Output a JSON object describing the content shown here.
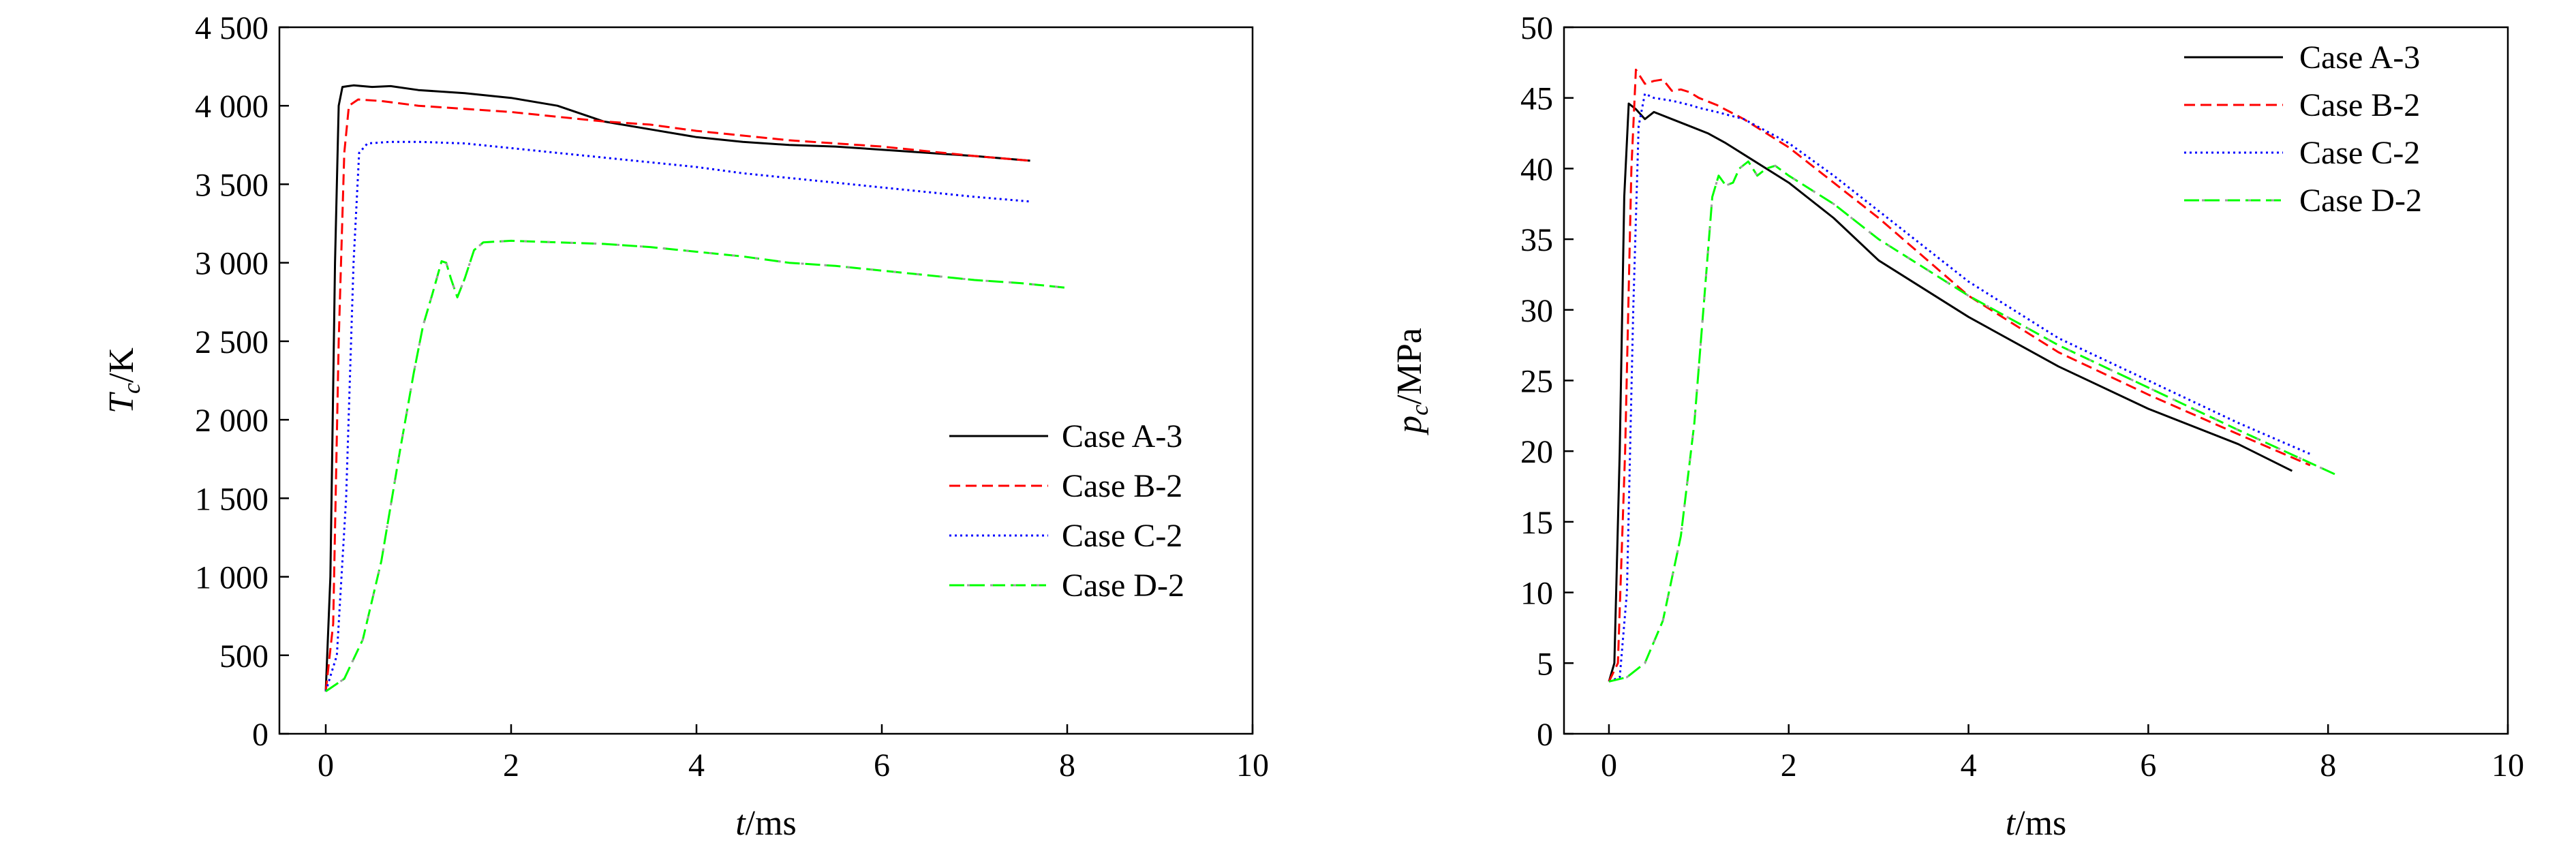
{
  "colors": {
    "case_a": "#000000",
    "case_b": "#ff0000",
    "case_c": "#0000ff",
    "case_d_green": "#00ff00",
    "case_d_gray": "#9e9e9e"
  },
  "chart_data": [
    {
      "type": "line",
      "xlabel": {
        "italic": "t",
        "rest": "/ms"
      },
      "ylabel": {
        "italic": "T",
        "sub": "c",
        "rest": "/K"
      },
      "xlim": [
        -0.5,
        10
      ],
      "ylim": [
        0,
        4500
      ],
      "x_ticks": [
        0,
        2,
        4,
        6,
        8,
        10
      ],
      "x_tick_labels": [
        "0",
        "2",
        "4",
        "6",
        "8",
        "10"
      ],
      "y_ticks": [
        0,
        500,
        1000,
        1500,
        2000,
        2500,
        3000,
        3500,
        4000,
        4500
      ],
      "y_tick_labels": [
        "0",
        "500",
        "1 000",
        "1 500",
        "2 000",
        "2 500",
        "3 000",
        "3 500",
        "4 000",
        "4 500"
      ],
      "grid": false,
      "legend_position": "middle-right",
      "series": [
        {
          "name": "Case A-3",
          "style": "solid",
          "color": "#000000",
          "points": [
            [
              0,
              270
            ],
            [
              0.05,
              1000
            ],
            [
              0.1,
              3000
            ],
            [
              0.14,
              4000
            ],
            [
              0.18,
              4120
            ],
            [
              0.3,
              4130
            ],
            [
              0.5,
              4120
            ],
            [
              0.7,
              4125
            ],
            [
              1,
              4100
            ],
            [
              1.5,
              4080
            ],
            [
              2,
              4050
            ],
            [
              2.5,
              4000
            ],
            [
              3,
              3900
            ],
            [
              3.5,
              3850
            ],
            [
              4,
              3800
            ],
            [
              4.5,
              3770
            ],
            [
              5,
              3750
            ],
            [
              5.5,
              3740
            ],
            [
              6,
              3720
            ],
            [
              6.5,
              3700
            ],
            [
              7,
              3680
            ],
            [
              7.6,
              3650
            ]
          ]
        },
        {
          "name": "Case B-2",
          "style": "dashed",
          "color": "#ff0000",
          "points": [
            [
              0,
              270
            ],
            [
              0.08,
              700
            ],
            [
              0.14,
              2500
            ],
            [
              0.2,
              3700
            ],
            [
              0.25,
              4000
            ],
            [
              0.35,
              4040
            ],
            [
              0.6,
              4030
            ],
            [
              1,
              4000
            ],
            [
              1.5,
              3980
            ],
            [
              2,
              3960
            ],
            [
              2.5,
              3930
            ],
            [
              3,
              3900
            ],
            [
              3.5,
              3880
            ],
            [
              4,
              3840
            ],
            [
              4.5,
              3810
            ],
            [
              5,
              3780
            ],
            [
              5.5,
              3760
            ],
            [
              6,
              3740
            ],
            [
              6.5,
              3710
            ],
            [
              7,
              3680
            ],
            [
              7.6,
              3650
            ]
          ]
        },
        {
          "name": "Case C-2",
          "style": "dotted",
          "color": "#0000ff",
          "points": [
            [
              0,
              270
            ],
            [
              0.12,
              500
            ],
            [
              0.22,
              1500
            ],
            [
              0.3,
              3000
            ],
            [
              0.36,
              3700
            ],
            [
              0.45,
              3760
            ],
            [
              0.7,
              3770
            ],
            [
              1,
              3770
            ],
            [
              1.5,
              3760
            ],
            [
              2,
              3730
            ],
            [
              2.5,
              3700
            ],
            [
              3,
              3670
            ],
            [
              3.5,
              3640
            ],
            [
              4,
              3610
            ],
            [
              4.5,
              3570
            ],
            [
              5,
              3540
            ],
            [
              5.5,
              3510
            ],
            [
              6,
              3480
            ],
            [
              6.5,
              3450
            ],
            [
              7,
              3420
            ],
            [
              7.6,
              3390
            ]
          ]
        },
        {
          "name": "Case D-2",
          "style": "dashdot",
          "color": "#00ff00",
          "color_alt": "#9e9e9e",
          "points": [
            [
              0,
              270
            ],
            [
              0.2,
              350
            ],
            [
              0.4,
              600
            ],
            [
              0.6,
              1100
            ],
            [
              0.8,
              1800
            ],
            [
              0.95,
              2300
            ],
            [
              1.05,
              2600
            ],
            [
              1.15,
              2800
            ],
            [
              1.25,
              3010
            ],
            [
              1.3,
              3000
            ],
            [
              1.35,
              2900
            ],
            [
              1.42,
              2780
            ],
            [
              1.5,
              2900
            ],
            [
              1.6,
              3080
            ],
            [
              1.7,
              3130
            ],
            [
              2,
              3140
            ],
            [
              2.5,
              3130
            ],
            [
              3,
              3120
            ],
            [
              3.5,
              3100
            ],
            [
              4,
              3070
            ],
            [
              4.5,
              3040
            ],
            [
              5,
              3000
            ],
            [
              5.5,
              2980
            ],
            [
              6,
              2950
            ],
            [
              6.5,
              2920
            ],
            [
              7,
              2890
            ],
            [
              7.5,
              2870
            ],
            [
              8,
              2840
            ]
          ]
        }
      ]
    },
    {
      "type": "line",
      "xlabel": {
        "italic": "t",
        "rest": "/ms"
      },
      "ylabel": {
        "italic": "p",
        "sub": "c",
        "rest": "/MPa"
      },
      "xlim": [
        -0.5,
        10
      ],
      "ylim": [
        0,
        50
      ],
      "x_ticks": [
        0,
        2,
        4,
        6,
        8,
        10
      ],
      "x_tick_labels": [
        "0",
        "2",
        "4",
        "6",
        "8",
        "10"
      ],
      "y_ticks": [
        0,
        5,
        10,
        15,
        20,
        25,
        30,
        35,
        40,
        45,
        50
      ],
      "y_tick_labels": [
        "0",
        "5",
        "10",
        "15",
        "20",
        "25",
        "30",
        "35",
        "40",
        "45",
        "50"
      ],
      "grid": false,
      "legend_position": "top-right",
      "series": [
        {
          "name": "Case A-3",
          "style": "solid",
          "color": "#000000",
          "points": [
            [
              0,
              3.7
            ],
            [
              0.06,
              5
            ],
            [
              0.12,
              20
            ],
            [
              0.17,
              38
            ],
            [
              0.22,
              44.6
            ],
            [
              0.3,
              44.2
            ],
            [
              0.4,
              43.5
            ],
            [
              0.5,
              44
            ],
            [
              0.7,
              43.5
            ],
            [
              0.9,
              43
            ],
            [
              1.1,
              42.5
            ],
            [
              1.3,
              41.8
            ],
            [
              1.5,
              41
            ],
            [
              2,
              39
            ],
            [
              2.5,
              36.5
            ],
            [
              3,
              33.5
            ],
            [
              4,
              29.5
            ],
            [
              5,
              26
            ],
            [
              6,
              23
            ],
            [
              7,
              20.5
            ],
            [
              7.6,
              18.6
            ]
          ]
        },
        {
          "name": "Case B-2",
          "style": "dashed",
          "color": "#ff0000",
          "points": [
            [
              0,
              3.7
            ],
            [
              0.1,
              5
            ],
            [
              0.18,
              20
            ],
            [
              0.25,
              40
            ],
            [
              0.3,
              47
            ],
            [
              0.4,
              46
            ],
            [
              0.5,
              46.2
            ],
            [
              0.6,
              46.3
            ],
            [
              0.7,
              45.5
            ],
            [
              0.8,
              45.6
            ],
            [
              0.9,
              45.4
            ],
            [
              1,
              45
            ],
            [
              1.2,
              44.5
            ],
            [
              1.5,
              43.5
            ],
            [
              2,
              41.5
            ],
            [
              2.5,
              39
            ],
            [
              3,
              36.5
            ],
            [
              4,
              31
            ],
            [
              5,
              27
            ],
            [
              6,
              24
            ],
            [
              7,
              21.2
            ],
            [
              7.8,
              19
            ]
          ]
        },
        {
          "name": "Case C-2",
          "style": "dotted",
          "color": "#0000ff",
          "points": [
            [
              0,
              3.7
            ],
            [
              0.12,
              4
            ],
            [
              0.2,
              10
            ],
            [
              0.27,
              30
            ],
            [
              0.33,
              43
            ],
            [
              0.4,
              45.3
            ],
            [
              0.5,
              45
            ],
            [
              0.7,
              44.8
            ],
            [
              0.9,
              44.5
            ],
            [
              1,
              44.3
            ],
            [
              1.2,
              44
            ],
            [
              1.5,
              43.5
            ],
            [
              2,
              41.8
            ],
            [
              2.5,
              39.5
            ],
            [
              3,
              37
            ],
            [
              4,
              32
            ],
            [
              5,
              28
            ],
            [
              6,
              25
            ],
            [
              7,
              22
            ],
            [
              7.8,
              19.8
            ]
          ]
        },
        {
          "name": "Case D-2",
          "style": "dashdot",
          "color": "#00ff00",
          "color_alt": "#9e9e9e",
          "points": [
            [
              0,
              3.7
            ],
            [
              0.2,
              4
            ],
            [
              0.4,
              5
            ],
            [
              0.6,
              8
            ],
            [
              0.8,
              14
            ],
            [
              0.95,
              22
            ],
            [
              1.05,
              30
            ],
            [
              1.15,
              38
            ],
            [
              1.22,
              39.5
            ],
            [
              1.3,
              38.8
            ],
            [
              1.38,
              39
            ],
            [
              1.45,
              40
            ],
            [
              1.55,
              40.5
            ],
            [
              1.65,
              39.5
            ],
            [
              1.75,
              40
            ],
            [
              1.85,
              40.2
            ],
            [
              2,
              39.5
            ],
            [
              2.5,
              37.5
            ],
            [
              3,
              35
            ],
            [
              4,
              31
            ],
            [
              5,
              27.5
            ],
            [
              6,
              24.5
            ],
            [
              7,
              21.5
            ],
            [
              8.1,
              18.3
            ]
          ]
        }
      ]
    }
  ]
}
